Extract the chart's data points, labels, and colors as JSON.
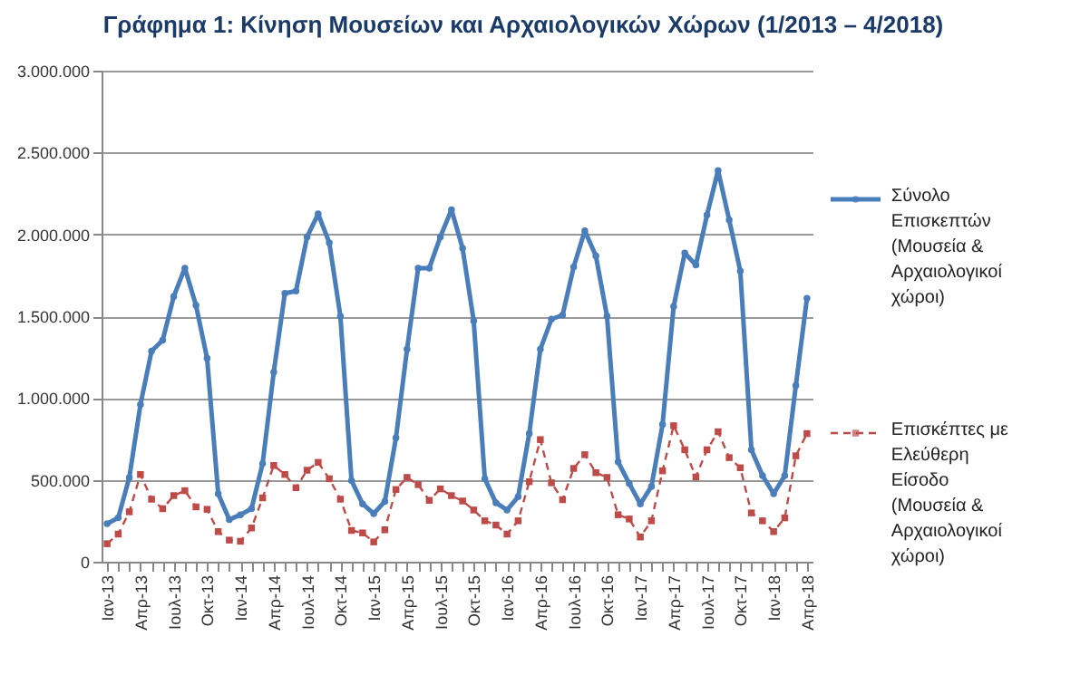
{
  "chart_data": {
    "type": "line",
    "title": "Γράφημα 1: Κίνηση Μουσείων και Αρχαιολογικών Χώρων (1/2013 – 4/2018)",
    "categories": [
      "Ιαν-13",
      null,
      null,
      "Απρ-13",
      null,
      null,
      "Ιουλ-13",
      null,
      null,
      "Οκτ-13",
      null,
      null,
      "Ιαν-14",
      null,
      null,
      "Απρ-14",
      null,
      null,
      "Ιουλ-14",
      null,
      null,
      "Οκτ-14",
      null,
      null,
      "Ιαν-15",
      null,
      null,
      "Απρ-15",
      null,
      null,
      "Ιουλ-15",
      null,
      null,
      "Οκτ-15",
      null,
      null,
      "Ιαν-16",
      null,
      null,
      "Απρ-16",
      null,
      null,
      "Ιουλ-16",
      null,
      null,
      "Οκτ-16",
      null,
      null,
      "Ιαν-17",
      null,
      null,
      "Απρ-17",
      null,
      null,
      "Ιουλ-17",
      null,
      null,
      "Οκτ-17",
      null,
      null,
      "Ιαν-18",
      null,
      null,
      "Απρ-18"
    ],
    "series": [
      {
        "name": "Σύνολο Επισκεπτών (Μουσεία & Αρχαιολογικοί χώροι)",
        "color": "#4a7ebb",
        "marker": "circle",
        "line_style": "solid",
        "values": [
          232000,
          268000,
          515000,
          960000,
          1287000,
          1353000,
          1621000,
          1794000,
          1566000,
          1243000,
          415000,
          257000,
          287000,
          324000,
          600000,
          1158000,
          1640000,
          1654000,
          1985000,
          2125000,
          1949000,
          1500000,
          496000,
          353000,
          294000,
          368000,
          757000,
          1298000,
          1794000,
          1794000,
          1985000,
          2151000,
          1915000,
          1471000,
          507000,
          360000,
          316000,
          397000,
          783000,
          1298000,
          1482000,
          1507000,
          1801000,
          2022000,
          1868000,
          1500000,
          610000,
          478000,
          353000,
          460000,
          838000,
          1560000,
          1886000,
          1813000,
          2118000,
          2390000,
          2088000,
          1776000,
          684000,
          526000,
          415000,
          526000,
          1077000,
          1610000
        ]
      },
      {
        "name": "Επισκέπτες με Ελεύθερη Είσοδο (Μουσεία & Αρχαιολογικοί χώροι)",
        "color": "#be4b48",
        "marker": "square",
        "line_style": "dashed",
        "values": [
          110000,
          169000,
          305000,
          533000,
          382000,
          324000,
          404000,
          434000,
          335000,
          320000,
          184000,
          132000,
          125000,
          206000,
          390000,
          588000,
          533000,
          452000,
          559000,
          607000,
          507000,
          382000,
          191000,
          176000,
          121000,
          195000,
          441000,
          515000,
          471000,
          375000,
          445000,
          404000,
          371000,
          316000,
          250000,
          224000,
          169000,
          250000,
          489000,
          746000,
          482000,
          379000,
          570000,
          654000,
          544000,
          515000,
          287000,
          261000,
          151000,
          250000,
          555000,
          831000,
          684000,
          518000,
          684000,
          794000,
          636000,
          574000,
          298000,
          250000,
          184000,
          268000,
          647000,
          783000
        ]
      }
    ],
    "ylim": [
      0,
      3000000
    ],
    "yticks": [
      {
        "value": 0,
        "label": "0"
      },
      {
        "value": 500000,
        "label": "500.000"
      },
      {
        "value": 1000000,
        "label": "1.000.000"
      },
      {
        "value": 1500000,
        "label": "1.500.000"
      },
      {
        "value": 2000000,
        "label": "2.000.000"
      },
      {
        "value": 2500000,
        "label": "2.500.000"
      },
      {
        "value": 3000000,
        "label": "3.000.000"
      }
    ],
    "grid": "y",
    "legend": "right"
  }
}
